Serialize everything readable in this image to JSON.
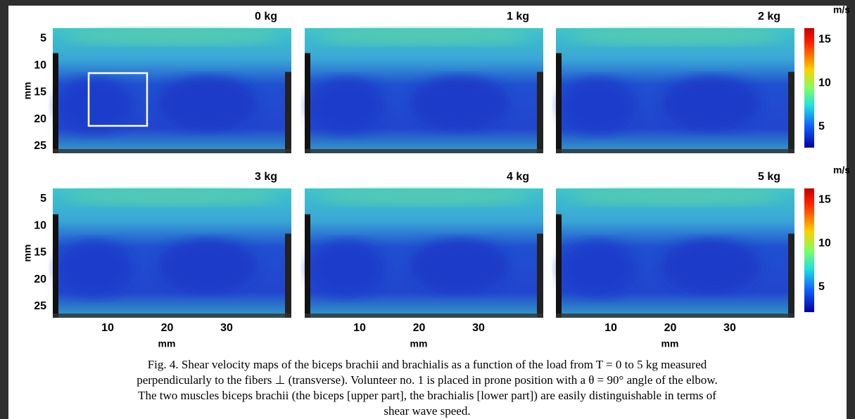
{
  "figure": {
    "panels": [
      {
        "title": "0 kg"
      },
      {
        "title": "1 kg"
      },
      {
        "title": "2 kg"
      },
      {
        "title": "3 kg"
      },
      {
        "title": "4 kg"
      },
      {
        "title": "5 kg"
      }
    ],
    "y_axis_label": "mm",
    "yticks": [
      5,
      10,
      15,
      20,
      25
    ],
    "x_axis_label": "mm",
    "xticks": [
      10,
      20,
      30
    ],
    "colorbar": {
      "unit": "m/s",
      "ticks": [
        15,
        10,
        5
      ]
    },
    "caption": [
      "Fig. 4.  Shear velocity maps of the biceps brachii and brachialis as a function of the load from T = 0 to 5 kg measured",
      "perpendicularly to the fibers ⊥ (transverse). Volunteer no. 1 is placed in prone position with a θ = 90° angle of the elbow.",
      "The two muscles biceps brachii (the biceps [upper part], the brachialis [lower part]) are easily distinguishable in terms of",
      "shear wave speed."
    ]
  }
}
